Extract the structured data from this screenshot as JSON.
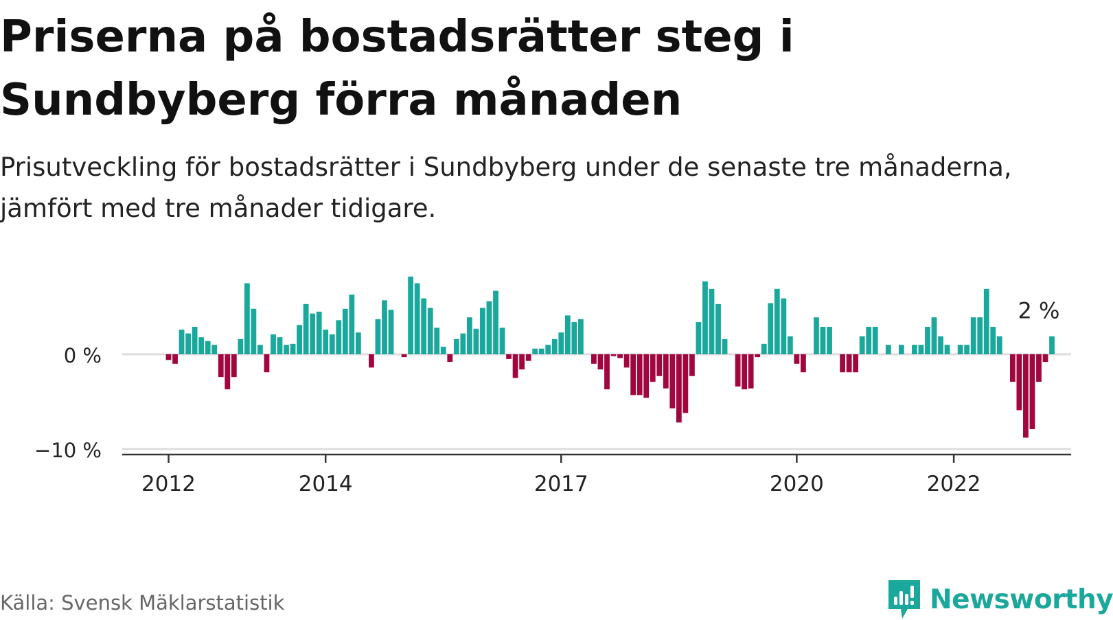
{
  "title": "Priserna på bostadsrätter steg i Sundbyberg förra månaden",
  "subtitle": "Prisutveckling för bostadsrätter i Sundbyberg under de senaste tre månaderna, jämfört med tre månader tidigare.",
  "source": "Källa: Svensk Mäklarstatistik",
  "brand": {
    "name": "Newsworthy",
    "icon": "newsworthy-logo-icon"
  },
  "colors": {
    "positive": "#1aa89c",
    "negative": "#a0073f",
    "zero_line": "#dddddd",
    "axis": "#333333",
    "brand": "#1aa89c"
  },
  "chart_data": {
    "type": "bar",
    "x_start": "2012-01",
    "x_ticks": [
      {
        "label": "2012",
        "date": "2012-01"
      },
      {
        "label": "2014",
        "date": "2014-01"
      },
      {
        "label": "2017",
        "date": "2017-01"
      },
      {
        "label": "2020",
        "date": "2020-01"
      },
      {
        "label": "2022",
        "date": "2022-01"
      }
    ],
    "y_ticks": [
      {
        "label": "0 %",
        "value": 0
      },
      {
        "label": "−10 %",
        "value": -10
      }
    ],
    "ylim": [
      -10,
      8.5
    ],
    "grid": "horizontal",
    "annotation": {
      "label": "2 %",
      "date": "2023-02",
      "value": 2
    },
    "values": [
      -0.6,
      -1.0,
      2.6,
      2.2,
      2.9,
      1.8,
      1.4,
      1.0,
      -2.4,
      -3.7,
      -2.4,
      1.6,
      7.5,
      4.8,
      1.0,
      -1.9,
      2.1,
      1.8,
      1.0,
      1.1,
      3.1,
      5.3,
      4.3,
      4.5,
      2.6,
      2.1,
      3.6,
      4.8,
      6.3,
      2.3,
      0.0,
      -1.4,
      3.7,
      5.7,
      4.7,
      0.0,
      -0.3,
      8.2,
      7.5,
      5.9,
      4.9,
      2.8,
      0.8,
      -0.8,
      1.6,
      2.2,
      3.9,
      2.7,
      4.9,
      5.6,
      6.7,
      2.8,
      -0.5,
      -2.5,
      -1.6,
      -0.7,
      0.6,
      0.6,
      1.0,
      1.6,
      2.3,
      4.1,
      3.4,
      3.7,
      0.0,
      -1.0,
      -1.6,
      -3.7,
      -0.2,
      -0.4,
      -1.4,
      -4.3,
      -4.3,
      -4.6,
      -2.9,
      -2.3,
      -3.6,
      -5.7,
      -7.2,
      -6.2,
      -2.3,
      3.4,
      7.7,
      6.9,
      5.3,
      1.6,
      0.0,
      -3.4,
      -3.7,
      -3.6,
      -0.3,
      1.1,
      5.4,
      6.9,
      5.9,
      1.9,
      -1.0,
      -1.9,
      0.0,
      3.9,
      2.9,
      2.9,
      0.0,
      -1.9,
      -1.9,
      -1.9,
      1.9,
      2.9,
      2.9,
      0.0,
      1.0,
      0.0,
      1.0,
      0.0,
      1.0,
      1.0,
      2.9,
      3.9,
      1.9,
      1.0,
      0.0,
      1.0,
      1.0,
      3.9,
      3.9,
      6.9,
      2.9,
      1.9,
      0.0,
      -2.9,
      -5.9,
      -8.8,
      -7.9,
      -2.9,
      -0.8,
      1.9
    ]
  }
}
